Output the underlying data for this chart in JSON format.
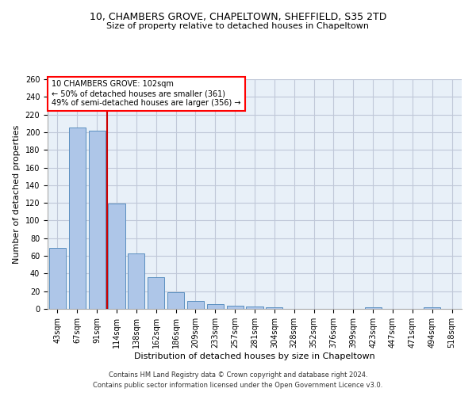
{
  "title1": "10, CHAMBERS GROVE, CHAPELTOWN, SHEFFIELD, S35 2TD",
  "title2": "Size of property relative to detached houses in Chapeltown",
  "xlabel": "Distribution of detached houses by size in Chapeltown",
  "ylabel": "Number of detached properties",
  "footer1": "Contains HM Land Registry data © Crown copyright and database right 2024.",
  "footer2": "Contains public sector information licensed under the Open Government Licence v3.0.",
  "annotation_line1": "10 CHAMBERS GROVE: 102sqm",
  "annotation_line2": "← 50% of detached houses are smaller (361)",
  "annotation_line3": "49% of semi-detached houses are larger (356) →",
  "bar_labels": [
    "43sqm",
    "67sqm",
    "91sqm",
    "114sqm",
    "138sqm",
    "162sqm",
    "186sqm",
    "209sqm",
    "233sqm",
    "257sqm",
    "281sqm",
    "304sqm",
    "328sqm",
    "352sqm",
    "376sqm",
    "399sqm",
    "423sqm",
    "447sqm",
    "471sqm",
    "494sqm",
    "518sqm"
  ],
  "bar_values": [
    69,
    205,
    202,
    119,
    63,
    36,
    19,
    9,
    5,
    4,
    3,
    2,
    0,
    0,
    0,
    0,
    2,
    0,
    0,
    2,
    0
  ],
  "bar_color": "#aec6e8",
  "bar_edge_color": "#5a8fc0",
  "vline_x": 2.5,
  "vline_color": "#cc0000",
  "bg_color": "#e8f0f8",
  "grid_color": "#c0c8d8",
  "ylim": [
    0,
    260
  ],
  "yticks": [
    0,
    20,
    40,
    60,
    80,
    100,
    120,
    140,
    160,
    180,
    200,
    220,
    240,
    260
  ],
  "title1_fontsize": 9,
  "title2_fontsize": 8,
  "ylabel_fontsize": 8,
  "xlabel_fontsize": 8,
  "tick_fontsize": 7,
  "footer_fontsize": 6,
  "annot_fontsize": 7
}
